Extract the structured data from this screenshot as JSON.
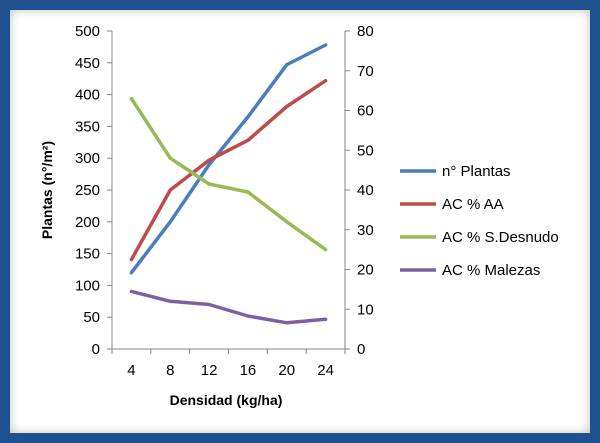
{
  "chart_data": {
    "type": "line",
    "xlabel": "Densidad (kg/ha)",
    "ylabel": "Plantas (n°/m²)",
    "x": [
      4,
      8,
      12,
      16,
      20,
      24
    ],
    "y_left": {
      "lim": [
        0,
        500
      ],
      "ticks": [
        0,
        50,
        100,
        150,
        200,
        250,
        300,
        350,
        400,
        450,
        500
      ]
    },
    "y_right": {
      "lim": [
        0,
        80
      ],
      "ticks": [
        0,
        10,
        20,
        30,
        40,
        50,
        60,
        70,
        80
      ]
    },
    "grid": false,
    "legend_position": "right",
    "series": [
      {
        "name": "n° Plantas",
        "axis": "left",
        "color": "#4a7ebb",
        "values": [
          120,
          200,
          290,
          365,
          447,
          478
        ]
      },
      {
        "name": "AC % AA",
        "axis": "right",
        "color": "#be4b48",
        "values": [
          22.5,
          40,
          47.5,
          52.5,
          61,
          67.5
        ]
      },
      {
        "name": "AC % S.Desnudo",
        "axis": "right",
        "color": "#98b954",
        "values": [
          63,
          48,
          41.5,
          39.5,
          32,
          25
        ]
      },
      {
        "name": "AC % Malezas",
        "axis": "right",
        "color": "#7d60a0",
        "values": [
          14.5,
          12,
          11.2,
          8.3,
          6.6,
          7.5
        ]
      }
    ]
  }
}
